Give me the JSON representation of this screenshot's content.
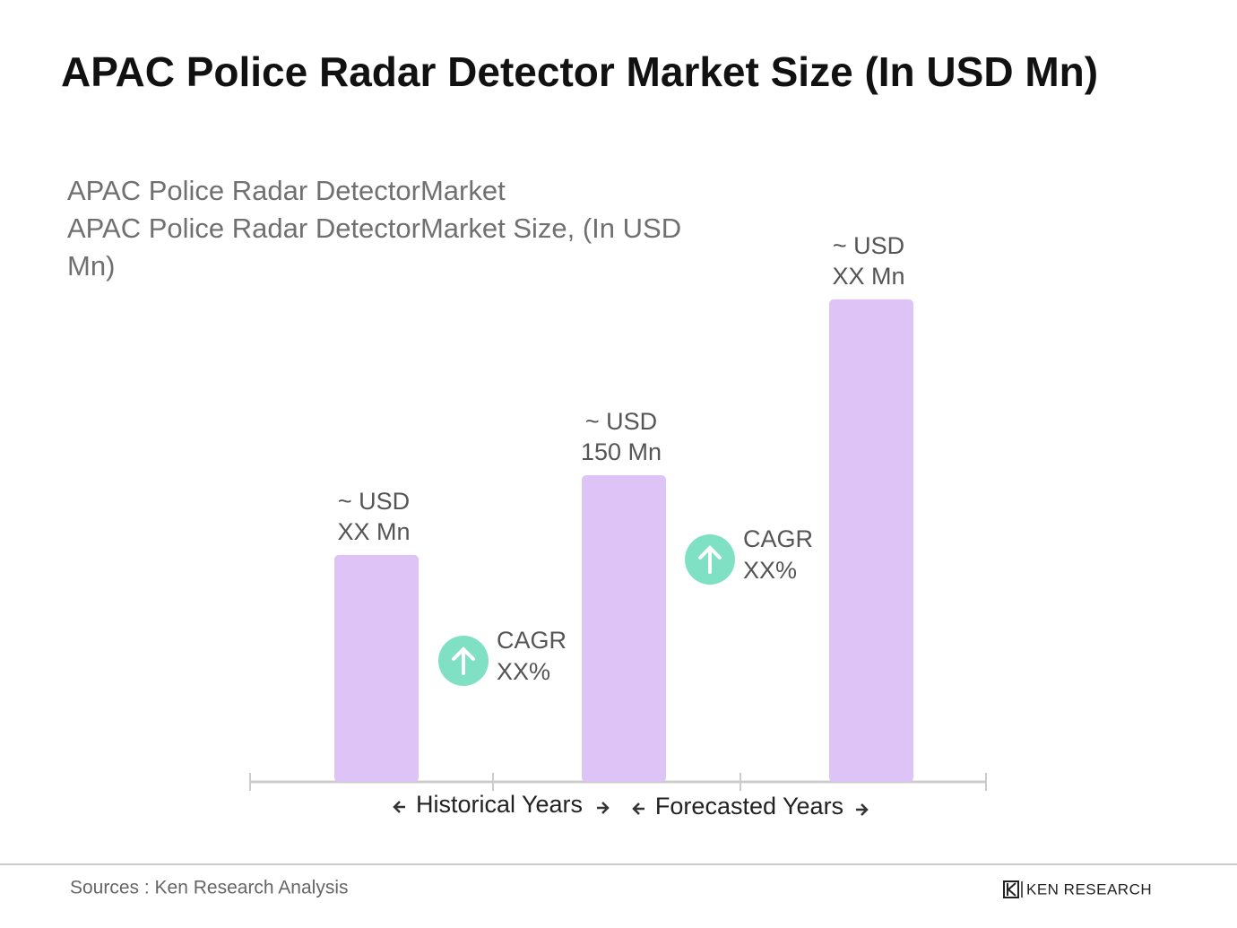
{
  "chart_data": {
    "type": "bar",
    "title": "APAC Police Radar Detector Market Size (In USD Mn)",
    "subtitle": [
      "APAC Police Radar DetectorMarket",
      "APAC Police Radar DetectorMarket Size, (In USD Mn)"
    ],
    "categories": [
      null,
      null,
      null
    ],
    "values": [
      111,
      150,
      236
    ],
    "value_labels": [
      [
        "~ USD",
        "XX Mn"
      ],
      [
        "~ USD",
        "150 Mn"
      ],
      [
        "~ USD",
        "XX Mn"
      ]
    ],
    "color": "#dec3f6",
    "ylim": [
      0,
      250
    ],
    "annotations": [
      {
        "lines": [
          "CAGR",
          "XX%"
        ]
      },
      {
        "lines": [
          "CAGR",
          "XX%"
        ]
      }
    ],
    "periods": [
      "Historical Years",
      "Forecasted Years"
    ],
    "source": "Sources : Ken Research Analysis",
    "brand": "KEN RESEARCH"
  }
}
